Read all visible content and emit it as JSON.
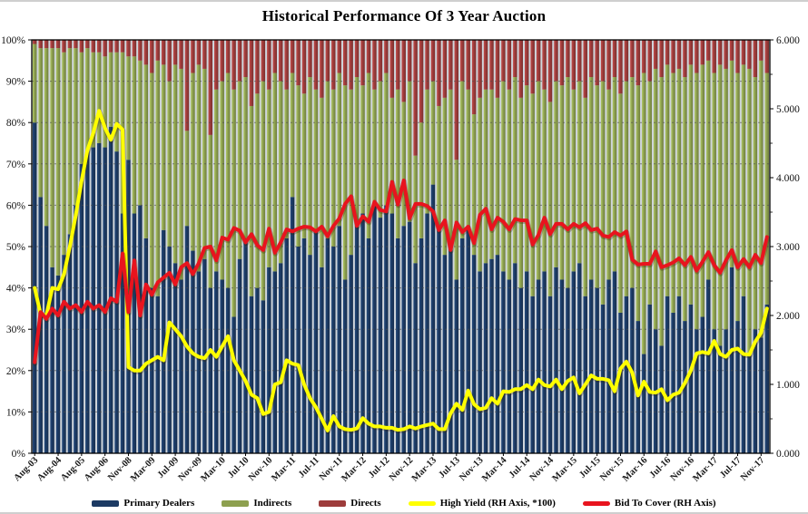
{
  "chart_data": {
    "type": "bar",
    "subtype": "stacked-bar-with-line-overlays",
    "title": "Historical Performance Of 3 Year Auction",
    "stack_total": 100,
    "grid": true,
    "y_left": {
      "min": 0,
      "max": 100,
      "tick_labels": [
        "0%",
        "10%",
        "20%",
        "30%",
        "40%",
        "50%",
        "60%",
        "70%",
        "80%",
        "90%",
        "100%"
      ]
    },
    "y_right": {
      "min": 0,
      "max": 6,
      "tick_labels": [
        "0.000",
        "1.000",
        "2.000",
        "3.000",
        "4.000",
        "5.000",
        "6.000"
      ],
      "minor_tick_step": 0.5
    },
    "categories": [
      "Aug-03",
      "Nov-03",
      "Feb-04",
      "May-04",
      "Aug-04",
      "Nov-04",
      "Feb-05",
      "May-05",
      "Aug-05",
      "Nov-05",
      "Feb-06",
      "May-06",
      "Aug-06",
      "Nov-06",
      "Feb-07",
      "May-07",
      "Nov-08",
      "Dec-08",
      "Jan-09",
      "Feb-09",
      "Mar-09",
      "Apr-09",
      "May-09",
      "Jun-09",
      "Jul-09",
      "Aug-09",
      "Sep-09",
      "Oct-09",
      "Nov-09",
      "Dec-09",
      "Jan-10",
      "Feb-10",
      "Mar-10",
      "Apr-10",
      "May-10",
      "Jun-10",
      "Jul-10",
      "Aug-10",
      "Sep-10",
      "Oct-10",
      "Nov-10",
      "Dec-10",
      "Jan-11",
      "Feb-11",
      "Mar-11",
      "Apr-11",
      "May-11",
      "Jun-11",
      "Jul-11",
      "Aug-11",
      "Sep-11",
      "Oct-11",
      "Nov-11",
      "Dec-11",
      "Jan-12",
      "Feb-12",
      "Mar-12",
      "Apr-12",
      "May-12",
      "Jun-12",
      "Jul-12",
      "Aug-12",
      "Sep-12",
      "Oct-12",
      "Nov-12",
      "Dec-12",
      "Jan-13",
      "Feb-13",
      "Mar-13",
      "Apr-13",
      "May-13",
      "Jun-13",
      "Jul-13",
      "Aug-13",
      "Sep-13",
      "Oct-13",
      "Nov-13",
      "Dec-13",
      "Jan-14",
      "Feb-14",
      "Mar-14",
      "Apr-14",
      "May-14",
      "Jun-14",
      "Jul-14",
      "Aug-14",
      "Sep-14",
      "Oct-14",
      "Nov-14",
      "Dec-14",
      "Jan-15",
      "Feb-15",
      "Mar-15",
      "Apr-15",
      "May-15",
      "Jun-15",
      "Jul-15",
      "Aug-15",
      "Sep-15",
      "Oct-15",
      "Nov-15",
      "Dec-15",
      "Jan-16",
      "Feb-16",
      "Mar-16",
      "Apr-16",
      "May-16",
      "Jun-16",
      "Jul-16",
      "Aug-16",
      "Sep-16",
      "Oct-16",
      "Nov-16",
      "Dec-16",
      "Jan-17",
      "Feb-17",
      "Mar-17",
      "Apr-17",
      "May-17",
      "Jun-17",
      "Jul-17",
      "Aug-17",
      "Sep-17",
      "Oct-17",
      "Nov-17",
      "Dec-17"
    ],
    "x_tick_indices": [
      0,
      4,
      8,
      12,
      16,
      20,
      24,
      28,
      32,
      36,
      40,
      44,
      48,
      52,
      56,
      60,
      64,
      68,
      72,
      76,
      80,
      84,
      88,
      92,
      96,
      100,
      104,
      108,
      112,
      116,
      120,
      124
    ],
    "series": [
      {
        "name": "Primary Dealers",
        "kind": "bar",
        "axis": "left",
        "color": "#1c3a63",
        "values": [
          80,
          62,
          55,
          45,
          43,
          48,
          53,
          60,
          70,
          73,
          74,
          75,
          74,
          79,
          73,
          58,
          71,
          58,
          60,
          52,
          40,
          38,
          54,
          50,
          46,
          42,
          55,
          49,
          44,
          47,
          40,
          44,
          42,
          40,
          33,
          47,
          52,
          38,
          40,
          37,
          45,
          44,
          46,
          52,
          62,
          50,
          52,
          48,
          54,
          45,
          52,
          50,
          55,
          42,
          48,
          55,
          58,
          52,
          60,
          57,
          60,
          58,
          52,
          55,
          56,
          46,
          52,
          58,
          65,
          55,
          48,
          50,
          42,
          52,
          55,
          48,
          44,
          46,
          47,
          48,
          44,
          42,
          46,
          40,
          44,
          38,
          42,
          44,
          38,
          45,
          42,
          40,
          44,
          46,
          38,
          42,
          40,
          36,
          42,
          44,
          34,
          38,
          40,
          32,
          24,
          36,
          30,
          26,
          38,
          34,
          38,
          32,
          36,
          30,
          33,
          42,
          30,
          26,
          30,
          45,
          32,
          38,
          24,
          30,
          28,
          36
        ]
      },
      {
        "name": "Indirects",
        "kind": "bar",
        "axis": "left",
        "color": "#8da04f",
        "values": [
          19,
          36,
          43,
          53,
          55,
          49,
          45,
          38,
          27,
          25,
          23,
          22,
          22,
          18,
          24,
          39,
          25,
          38,
          35,
          42,
          52,
          57,
          40,
          40,
          48,
          51,
          23,
          43,
          50,
          46,
          37,
          44,
          48,
          52,
          55,
          43,
          39,
          46,
          47,
          53,
          43,
          48,
          44,
          36,
          30,
          39,
          35,
          43,
          34,
          41,
          38,
          38,
          37,
          47,
          40,
          36,
          31,
          40,
          28,
          33,
          32,
          28,
          36,
          30,
          34,
          26,
          28,
          30,
          25,
          29,
          38,
          38,
          29,
          38,
          33,
          34,
          42,
          42,
          41,
          38,
          46,
          46,
          45,
          46,
          45,
          49,
          48,
          44,
          47,
          45,
          47,
          51,
          44,
          44,
          48,
          49,
          49,
          54,
          46,
          47,
          53,
          52,
          51,
          57,
          68,
          54,
          63,
          65,
          56,
          58,
          55,
          59,
          58,
          62,
          61,
          53,
          62,
          68,
          63,
          50,
          60,
          56,
          69,
          61,
          67,
          56
        ]
      },
      {
        "name": "Directs",
        "kind": "bar",
        "axis": "left",
        "color": "#9d3c3b",
        "values": [
          1,
          2,
          2,
          2,
          2,
          3,
          2,
          2,
          3,
          2,
          3,
          3,
          4,
          3,
          3,
          3,
          4,
          4,
          5,
          6,
          8,
          5,
          6,
          10,
          6,
          7,
          22,
          8,
          6,
          7,
          23,
          12,
          10,
          8,
          12,
          10,
          9,
          16,
          13,
          10,
          12,
          8,
          10,
          12,
          8,
          11,
          13,
          9,
          12,
          14,
          10,
          12,
          8,
          11,
          12,
          9,
          11,
          8,
          12,
          10,
          8,
          14,
          12,
          15,
          10,
          28,
          20,
          12,
          10,
          16,
          14,
          12,
          29,
          10,
          12,
          18,
          14,
          12,
          12,
          14,
          10,
          12,
          9,
          14,
          11,
          13,
          10,
          12,
          15,
          10,
          11,
          9,
          12,
          10,
          14,
          9,
          11,
          10,
          12,
          9,
          13,
          10,
          9,
          11,
          8,
          10,
          7,
          9,
          6,
          8,
          7,
          9,
          6,
          8,
          6,
          5,
          8,
          6,
          7,
          5,
          8,
          6,
          7,
          9,
          5,
          8
        ]
      },
      {
        "name": "High Yield (RH Axis, *100)",
        "kind": "line",
        "axis": "right",
        "color": "#ffff00",
        "values": [
          2.4,
          2.02,
          2.0,
          2.4,
          2.38,
          2.6,
          3.0,
          3.45,
          3.95,
          4.4,
          4.65,
          4.97,
          4.72,
          4.55,
          4.78,
          4.7,
          1.25,
          1.2,
          1.2,
          1.3,
          1.35,
          1.4,
          1.35,
          1.9,
          1.8,
          1.7,
          1.55,
          1.45,
          1.4,
          1.38,
          1.5,
          1.4,
          1.55,
          1.7,
          1.35,
          1.2,
          1.05,
          0.85,
          0.8,
          0.57,
          0.6,
          1.0,
          1.03,
          1.35,
          1.3,
          1.28,
          1.0,
          0.8,
          0.67,
          0.5,
          0.33,
          0.54,
          0.39,
          0.35,
          0.34,
          0.36,
          0.51,
          0.43,
          0.39,
          0.39,
          0.37,
          0.37,
          0.34,
          0.35,
          0.39,
          0.36,
          0.39,
          0.41,
          0.43,
          0.35,
          0.35,
          0.58,
          0.72,
          0.63,
          0.91,
          0.71,
          0.64,
          0.66,
          0.8,
          0.72,
          0.9,
          0.89,
          0.93,
          0.93,
          0.99,
          0.93,
          1.07,
          0.99,
          0.97,
          1.07,
          0.93,
          1.05,
          1.1,
          0.87,
          1.0,
          1.13,
          1.08,
          1.08,
          1.06,
          0.9,
          1.23,
          1.33,
          1.17,
          0.84,
          1.04,
          0.89,
          0.88,
          0.93,
          0.77,
          0.85,
          0.88,
          1.02,
          1.2,
          1.45,
          1.47,
          1.45,
          1.63,
          1.44,
          1.4,
          1.5,
          1.52,
          1.44,
          1.43,
          1.62,
          1.75,
          2.1
        ]
      },
      {
        "name": "Bid To Cover (RH Axis)",
        "kind": "line",
        "axis": "right",
        "color": "#e8141e",
        "values": [
          1.32,
          2.05,
          1.95,
          2.1,
          2.0,
          2.2,
          2.1,
          2.15,
          2.05,
          2.2,
          2.1,
          2.15,
          2.05,
          2.25,
          2.2,
          2.9,
          2.05,
          2.8,
          2.0,
          2.45,
          2.3,
          2.48,
          2.55,
          2.62,
          2.45,
          2.7,
          2.76,
          2.6,
          2.76,
          2.98,
          3.0,
          2.8,
          3.13,
          3.1,
          3.27,
          3.23,
          3.06,
          3.18,
          3.02,
          2.95,
          3.26,
          2.91,
          3.06,
          3.25,
          3.22,
          3.26,
          3.29,
          3.28,
          3.22,
          3.29,
          3.15,
          3.3,
          3.41,
          3.62,
          3.73,
          3.3,
          3.44,
          3.36,
          3.65,
          3.53,
          3.51,
          3.94,
          3.61,
          3.96,
          3.41,
          3.62,
          3.62,
          3.59,
          3.51,
          3.24,
          3.38,
          2.95,
          3.35,
          3.21,
          3.29,
          3.05,
          3.46,
          3.55,
          3.25,
          3.42,
          3.36,
          3.25,
          3.4,
          3.38,
          3.38,
          3.03,
          3.17,
          3.42,
          3.18,
          3.33,
          3.33,
          3.25,
          3.33,
          3.28,
          3.34,
          3.24,
          3.26,
          3.16,
          3.14,
          3.21,
          3.16,
          3.22,
          2.81,
          2.74,
          2.75,
          2.75,
          2.93,
          2.7,
          2.73,
          2.77,
          2.83,
          2.73,
          2.85,
          2.65,
          2.78,
          2.92,
          2.73,
          2.62,
          2.8,
          2.95,
          2.7,
          2.82,
          2.7,
          2.88,
          2.76,
          3.14
        ]
      }
    ],
    "legend_position": "bottom"
  },
  "legend": {
    "items": [
      {
        "label": "Primary Dealers",
        "color": "#1c3a63",
        "swatch": "rect"
      },
      {
        "label": "Indirects",
        "color": "#8da04f",
        "swatch": "rect"
      },
      {
        "label": "Directs",
        "color": "#9d3c3b",
        "swatch": "rect"
      },
      {
        "label": "High Yield (RH Axis, *100)",
        "color": "#ffff00",
        "swatch": "line"
      },
      {
        "label": "Bid To Cover (RH Axis)",
        "color": "#e8141e",
        "swatch": "line"
      }
    ]
  },
  "colors": {
    "plot_background": "#cfd5db",
    "gridline": "#4d4d4d",
    "axis_line": "#000000",
    "text": "#111111"
  }
}
